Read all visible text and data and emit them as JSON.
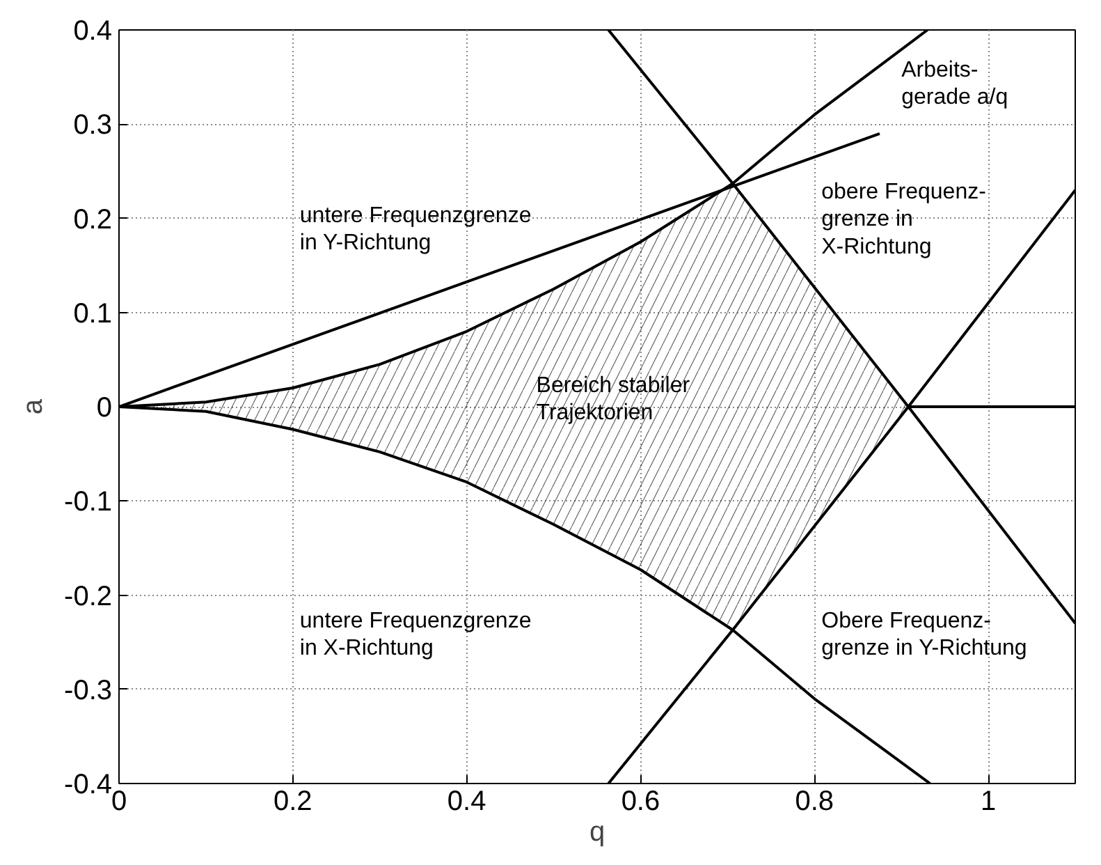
{
  "chart_data": {
    "type": "line",
    "xlabel": "q",
    "ylabel": "a",
    "xlim": [
      0,
      1.1
    ],
    "ylim": [
      -0.4,
      0.4
    ],
    "xticks": [
      0,
      0.2,
      0.4,
      0.6,
      0.8,
      1
    ],
    "yticks": [
      -0.4,
      -0.3,
      -0.2,
      -0.1,
      0,
      0.1,
      0.2,
      0.3,
      0.4
    ],
    "grid": true,
    "marker": "none",
    "line_style": "solid",
    "series": [
      {
        "type": "area",
        "color": "#000000",
        "x": [
          0,
          0.1,
          0.2,
          0.3,
          0.4,
          0.5,
          0.6,
          0.706,
          0.8,
          0.908
        ],
        "values": [
          0,
          0.005,
          0.02,
          0.045,
          0.08,
          0.125,
          0.175,
          0.237,
          0.127,
          0
        ]
      },
      {
        "type": "area",
        "color": "#000000",
        "x": [
          0,
          0.1,
          0.2,
          0.3,
          0.4,
          0.5,
          0.6,
          0.706,
          0.8,
          0.908
        ],
        "values": [
          0,
          -0.005,
          -0.024,
          -0.048,
          -0.08,
          -0.125,
          -0.173,
          -0.237,
          -0.127,
          0
        ]
      },
      {
        "color": "#000000",
        "x": [
          0,
          0.1,
          0.2,
          0.3,
          0.4,
          0.5,
          0.6,
          0.706,
          0.8,
          0.93
        ],
        "values": [
          0,
          0.005,
          0.02,
          0.045,
          0.08,
          0.125,
          0.175,
          0.237,
          0.31,
          0.4
        ]
      },
      {
        "color": "#000000",
        "x": [
          0,
          0.1,
          0.2,
          0.3,
          0.4,
          0.5,
          0.6,
          0.706,
          0.8,
          0.933
        ],
        "values": [
          0,
          -0.005,
          -0.024,
          -0.048,
          -0.08,
          -0.125,
          -0.173,
          -0.237,
          -0.31,
          -0.4
        ]
      },
      {
        "color": "#000000",
        "x": [
          0.563,
          0.706,
          0.908,
          1.1
        ],
        "values": [
          0.4,
          0.237,
          0,
          -0.23
        ]
      },
      {
        "color": "#000000",
        "x": [
          0.563,
          0.706,
          0.908,
          1.1
        ],
        "values": [
          -0.4,
          -0.237,
          0,
          0.23
        ]
      },
      {
        "color": "#000000",
        "x": [
          0,
          0.875
        ],
        "values": [
          0,
          0.29
        ]
      },
      {
        "color": "#000000",
        "x": [
          0.908,
          1.1
        ],
        "values": [
          0,
          0
        ]
      }
    ],
    "annotations": [
      "untere Frequenzgrenze\nin Y-Richtung",
      "Arbeits-\ngerade a/q",
      "obere Frequenz-\ngrenze in\nX-Richtung",
      "Bereich stabiler\n    Trajektorien",
      "untere Frequenzgrenze\nin X-Richtung",
      "Obere Frequenz-\ngrenze in Y-Richtung"
    ]
  }
}
